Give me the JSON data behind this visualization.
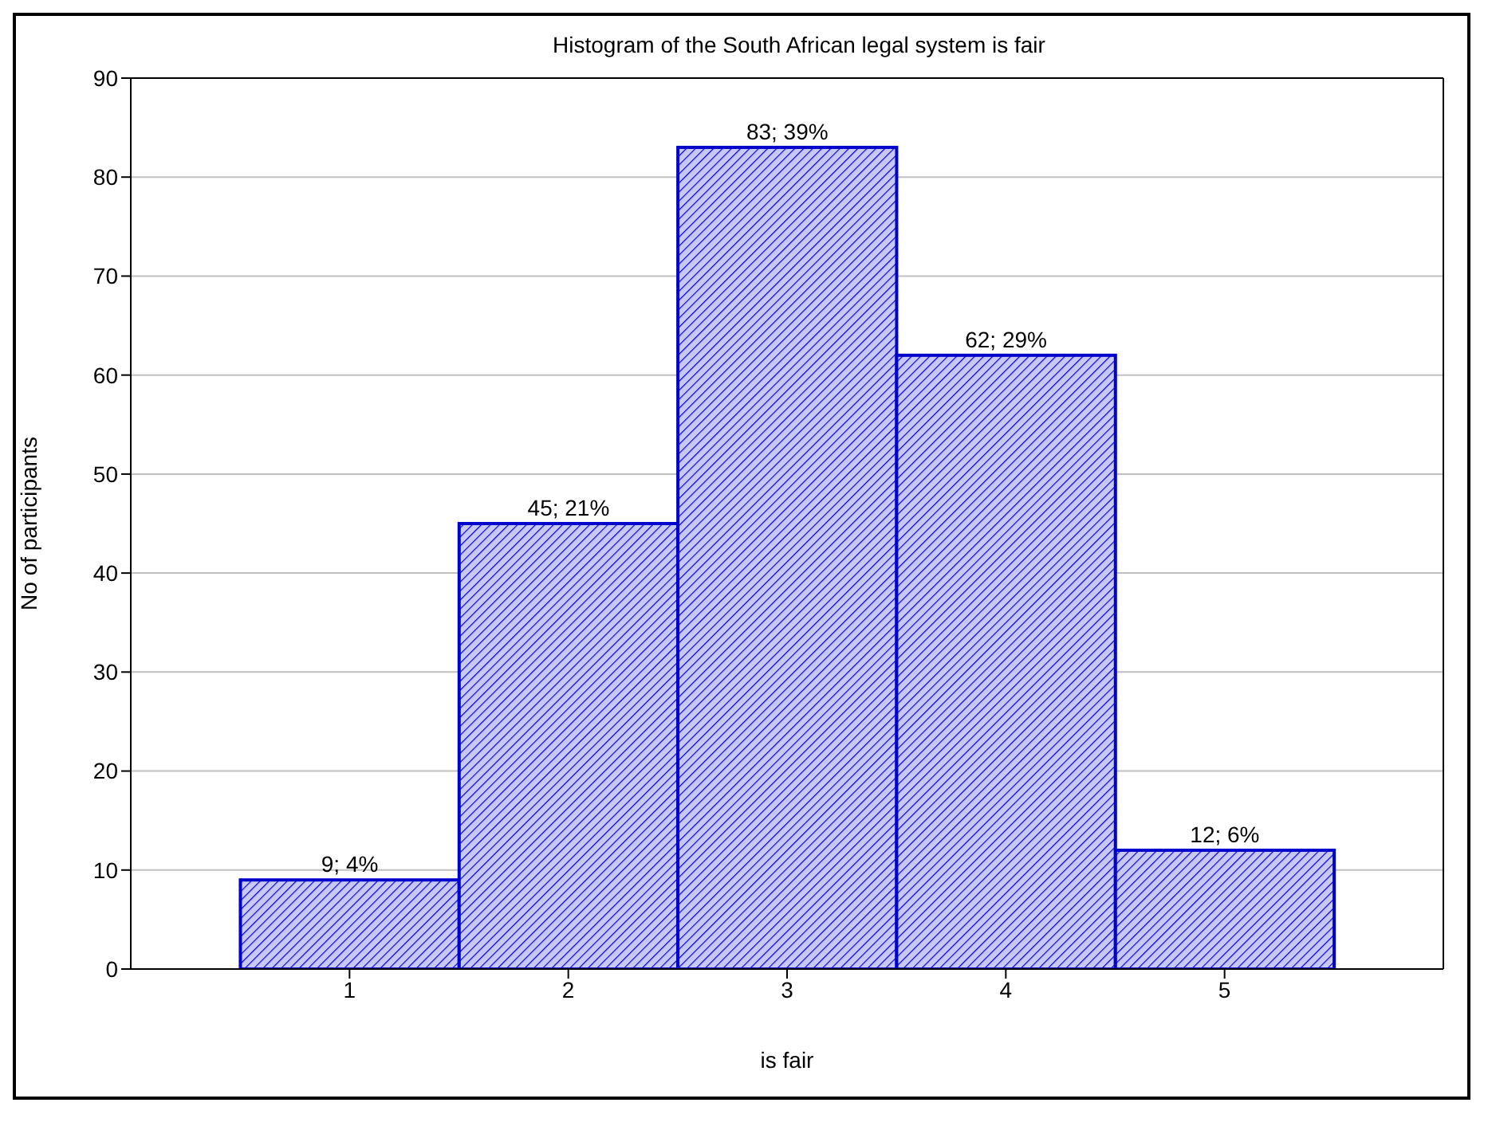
{
  "chart_data": {
    "type": "histogram",
    "title": "Histogram of the South African legal system is fair",
    "xlabel": "is fair",
    "ylabel": "No of participants",
    "bins": [
      0.5,
      1.5,
      2.5,
      3.5,
      4.5,
      5.5
    ],
    "values": [
      9,
      45,
      83,
      62,
      12
    ],
    "value_labels": [
      "9; 4%",
      "45; 21%",
      "83; 39%",
      "62; 29%",
      "12; 6%"
    ],
    "color": "#0000cc",
    "xlim": [
      0,
      6
    ],
    "xticks": [
      1,
      2,
      3,
      4,
      5
    ],
    "ylim": [
      0,
      90
    ],
    "yticks": [
      0,
      10,
      20,
      30,
      40,
      50,
      60,
      70,
      80,
      90
    ],
    "grid": "y",
    "legend": false
  }
}
